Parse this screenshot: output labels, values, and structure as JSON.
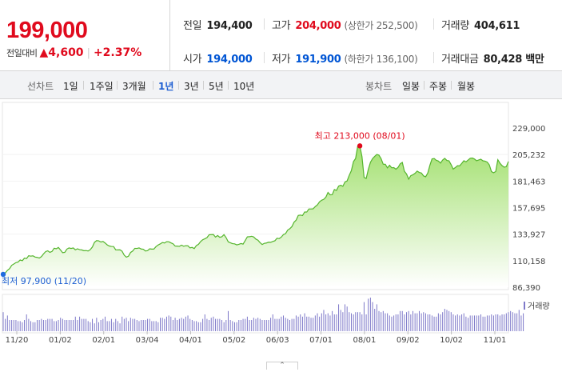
{
  "summary": {
    "price": "199,000",
    "change_label": "전일대비",
    "change_arrow": "▲",
    "change_value": "4,600",
    "change_rate": "+2.37%",
    "prev_close": {
      "label": "전일",
      "value": "194,400"
    },
    "high": {
      "label": "고가",
      "value": "204,000",
      "note": "(상한가 252,500)"
    },
    "volume": {
      "label": "거래량",
      "value": "404,611"
    },
    "open": {
      "label": "시가",
      "value": "194,000"
    },
    "low": {
      "label": "저가",
      "value": "191,900",
      "note": "(하한가 136,100)"
    },
    "amount": {
      "label": "거래대금",
      "value": "80,428 백만"
    }
  },
  "line_period": {
    "label": "선차트",
    "options": [
      "1일",
      "1주일",
      "3개월",
      "1년",
      "3년",
      "5년",
      "10년"
    ],
    "active": "1년"
  },
  "candle_period": {
    "label": "봉차트",
    "options": [
      "일봉",
      "주봉",
      "월봉"
    ]
  },
  "collapse_glyph": "⌃",
  "colors": {
    "up": "#e00a1d",
    "down": "#0055d4",
    "line": "#55b52d",
    "accent": "#1e5fd2"
  },
  "chart_data": {
    "type": "area",
    "title": "",
    "ylim": [
      86390,
      229000
    ],
    "y_ticks": [
      "229,000",
      "205,232",
      "181,463",
      "157,695",
      "133,927",
      "110,158",
      "86,390"
    ],
    "x_ticks": [
      "11/20",
      "01/02",
      "02/01",
      "03/04",
      "04/01",
      "05/02",
      "06/03",
      "07/01",
      "08/01",
      "09/02",
      "10/02",
      "11/01"
    ],
    "max_annotation": "최고 213,000 (08/01)",
    "min_annotation": "최저 97,900 (11/20)",
    "volume_legend": "거래량",
    "series": [
      {
        "name": "",
        "values": [
          97900,
          99200,
          101500,
          103000,
          106000,
          107200,
          108400,
          108900,
          110800,
          110100,
          112400,
          112000,
          114600,
          114200,
          114500,
          113400,
          113100,
          112500,
          113800,
          116200,
          118300,
          119000,
          117600,
          118400,
          121300,
          120800,
          122000,
          119700,
          117300,
          117600,
          120500,
          121600,
          121100,
          121600,
          119900,
          120800,
          120000,
          119800,
          119100,
          119200,
          118800,
          120000,
          122400,
          126600,
          128100,
          127900,
          126900,
          127400,
          126000,
          124300,
          123300,
          122900,
          122800,
          119900,
          119800,
          119900,
          118600,
          115100,
          113300,
          114100,
          117500,
          118800,
          121200,
          121100,
          121600,
          120600,
          120400,
          118800,
          119100,
          120800,
          120500,
          120600,
          122800,
          124200,
          125200,
          126400,
          126000,
          127200,
          127100,
          126100,
          125300,
          123300,
          123200,
          123000,
          124100,
          123100,
          123600,
          123500,
          121600,
          122000,
          121000,
          123700,
          124800,
          127300,
          128900,
          129800,
          130800,
          133400,
          133500,
          133600,
          131300,
          132700,
          131100,
          131600,
          133500,
          130800,
          127000,
          126200,
          125400,
          125200,
          124300,
          124800,
          125500,
          125000,
          128200,
          131500,
          131600,
          132000,
          131400,
          129500,
          128500,
          126300,
          124600,
          125700,
          126000,
          126700,
          126600,
          127400,
          128000,
          130300,
          129900,
          131300,
          133500,
          134400,
          137500,
          138800,
          140700,
          144600,
          146500,
          150700,
          151000,
          150600,
          153800,
          153700,
          156500,
          156500,
          156600,
          158600,
          160100,
          162900,
          164300,
          165100,
          167100,
          171300,
          169200,
          169300,
          173900,
          173100,
          177000,
          177700,
          176800,
          180700,
          181600,
          186600,
          190800,
          198900,
          201700,
          212900,
          213000,
          203500,
          184700,
          183800,
          192000,
          198300,
          201600,
          203600,
          205300,
          204700,
          201600,
          196600,
          196500,
          193300,
          195600,
          193400,
          193500,
          192100,
          193700,
          196900,
          198200,
          190200,
          187800,
          183200,
          186300,
          187100,
          188400,
          190400,
          189200,
          188700,
          186100,
          185300,
          188700,
          195600,
          201300,
          201700,
          200100,
          199400,
          197600,
          200300,
          201800,
          199900,
          199600,
          196200,
          192200,
          193600,
          195200,
          195100,
          197300,
          199700,
          198700,
          200300,
          201900,
          202100,
          201200,
          199700,
          200400,
          201000,
          199600,
          199300,
          198500,
          195900,
          190000,
          188900,
          190000,
          200600,
          197500,
          195300,
          193900,
          194400,
          199000
        ]
      }
    ],
    "volume": [
      17,
      11,
      14,
      10,
      10,
      10,
      10,
      9,
      9,
      8,
      10,
      15,
      11,
      9,
      8,
      8,
      10,
      10,
      11,
      10,
      10,
      11,
      11,
      11,
      9,
      9,
      10,
      12,
      11,
      10,
      10,
      10,
      10,
      10,
      13,
      10,
      13,
      11,
      11,
      11,
      9,
      8,
      11,
      7,
      12,
      8,
      10,
      11,
      13,
      9,
      9,
      11,
      8,
      11,
      9,
      7,
      13,
      11,
      12,
      9,
      12,
      11,
      11,
      10,
      9,
      10,
      10,
      10,
      11,
      11,
      9,
      9,
      9,
      8,
      12,
      12,
      11,
      13,
      14,
      13,
      10,
      12,
      10,
      11,
      12,
      11,
      13,
      14,
      11,
      10,
      9,
      9,
      8,
      8,
      11,
      15,
      11,
      10,
      12,
      13,
      11,
      11,
      11,
      10,
      8,
      10,
      18,
      10,
      9,
      8,
      8,
      10,
      10,
      11,
      11,
      13,
      10,
      10,
      12,
      11,
      12,
      11,
      10,
      10,
      10,
      10,
      12,
      15,
      11,
      11,
      11,
      13,
      14,
      12,
      11,
      10,
      11,
      11,
      14,
      13,
      15,
      13,
      16,
      13,
      13,
      12,
      12,
      14,
      16,
      13,
      16,
      19,
      15,
      16,
      14,
      18,
      15,
      15,
      24,
      19,
      17,
      24,
      22,
      17,
      16,
      15,
      17,
      17,
      17,
      15,
      26,
      15,
      29,
      30,
      26,
      20,
      24,
      18,
      17,
      18,
      16,
      16,
      14,
      13,
      14,
      15,
      15,
      18,
      18,
      15,
      17,
      18,
      15,
      18,
      16,
      16,
      18,
      16,
      17,
      16,
      15,
      15,
      14,
      13,
      13,
      16,
      15,
      17,
      20,
      19,
      18,
      17,
      15,
      14,
      15,
      14,
      15,
      16,
      13,
      12,
      14,
      14,
      14,
      14,
      14,
      15,
      13,
      13,
      14,
      14,
      15,
      14,
      15,
      15,
      14,
      15,
      15,
      16,
      17,
      18,
      17,
      16,
      16,
      19,
      14,
      16
    ]
  }
}
